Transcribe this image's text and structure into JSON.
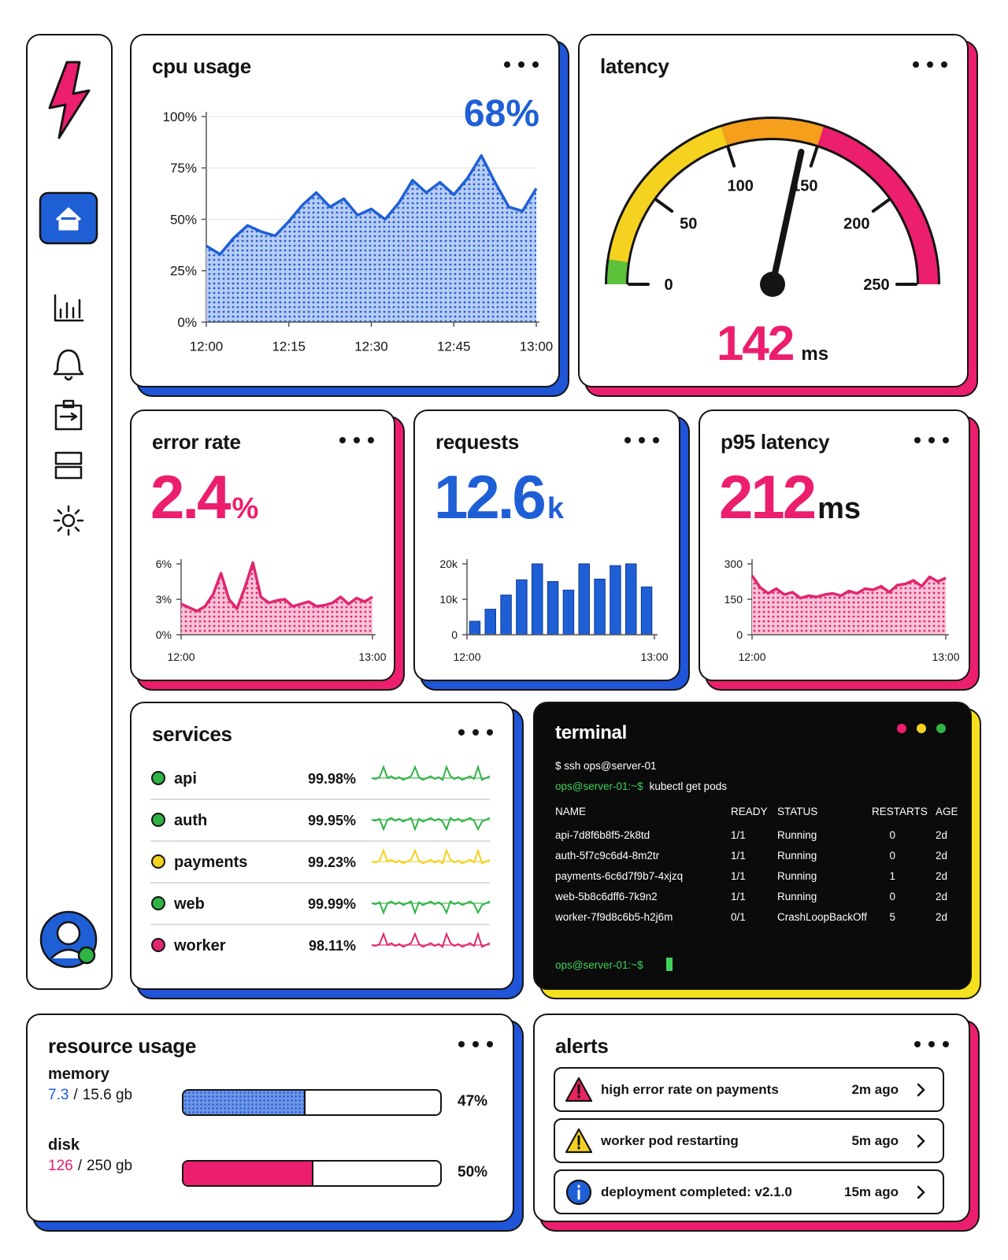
{
  "cpu_usage": {
    "title": "cpu usage",
    "value_label": "68%",
    "chart": {
      "type": "area",
      "color": "#1f5fd6",
      "fill": "#b9cdf3",
      "x": [
        0,
        2.5,
        5,
        7.5,
        10,
        12.5,
        15,
        17.5,
        20,
        22.5,
        25,
        27.5,
        30,
        32.5,
        35,
        37.5,
        40,
        42.5,
        45,
        47.5,
        50,
        52.5,
        55,
        57.5,
        60
      ],
      "values": [
        37,
        33,
        41,
        47,
        44,
        42,
        49,
        57,
        63,
        56,
        60,
        52,
        55,
        50,
        58,
        69,
        63,
        68,
        62,
        70,
        81,
        68,
        56,
        54,
        65
      ],
      "xlim": [
        0,
        60
      ],
      "xticks": [
        {
          "value": 0,
          "label": "12:00"
        },
        {
          "value": 15,
          "label": "12:15"
        },
        {
          "value": 30,
          "label": "12:30"
        },
        {
          "value": 45,
          "label": "12:45"
        },
        {
          "value": 60,
          "label": "13:00"
        }
      ],
      "ylim": [
        0,
        100
      ],
      "yticks": [
        {
          "value": 0,
          "label": "0%"
        },
        {
          "value": 25,
          "label": "25%"
        },
        {
          "value": 50,
          "label": "50%"
        },
        {
          "value": 75,
          "label": "75%"
        },
        {
          "value": 100,
          "label": "100%"
        }
      ],
      "grid": true
    }
  },
  "latency": {
    "title": "latency",
    "chart": {
      "type": "gauge",
      "value": 142,
      "unit": "ms",
      "color": "#ec1e6e",
      "ylim": [
        0,
        250
      ],
      "yticks": [
        0,
        50,
        100,
        150,
        200,
        250
      ],
      "bands": [
        {
          "from": 0,
          "to": 12,
          "color": "#5cc23a"
        },
        {
          "from": 12,
          "to": 100,
          "color": "#f4d21f"
        },
        {
          "from": 100,
          "to": 150,
          "color": "#f59f1c"
        },
        {
          "from": 150,
          "to": 250,
          "color": "#ec1e6e"
        }
      ]
    }
  },
  "error_rate": {
    "title": "error rate",
    "value": 2.4,
    "unit": "%",
    "color": "#ec1e6e",
    "unit_color": "#ec1e6e",
    "chart": {
      "type": "area",
      "color": "#e0266f",
      "fill": "#f7c3d8",
      "x": [
        0,
        2.5,
        5,
        7.5,
        10,
        12.5,
        15,
        17.5,
        20,
        22.5,
        25,
        27.5,
        30,
        32.5,
        35,
        37.5,
        40,
        42.5,
        45,
        47.5,
        50,
        52.5,
        55,
        57.5,
        60
      ],
      "values": [
        2.6,
        2.3,
        2.0,
        2.4,
        3.4,
        5.2,
        3.0,
        2.2,
        4.0,
        6.1,
        3.2,
        2.7,
        2.9,
        3.0,
        2.4,
        2.6,
        2.8,
        2.4,
        2.5,
        2.7,
        3.2,
        2.6,
        3.1,
        2.8,
        3.2
      ],
      "xlim": [
        0,
        60
      ],
      "xticks": [
        {
          "value": 0,
          "label": "12:00"
        },
        {
          "value": 60,
          "label": "13:00"
        }
      ],
      "ylim": [
        0,
        6
      ],
      "yticks": [
        {
          "value": 0,
          "label": "0%"
        },
        {
          "value": 3,
          "label": "3%"
        },
        {
          "value": 6,
          "label": "6%"
        }
      ]
    }
  },
  "requests": {
    "title": "requests",
    "value": 12.6,
    "unit": "k",
    "color": "#1f5fd6",
    "unit_color": "#1f5fd6",
    "chart": {
      "type": "bar",
      "color": "#1f5fd6",
      "x": [
        2.5,
        7.5,
        12.5,
        17.5,
        22.5,
        27.5,
        32.5,
        37.5,
        42.5,
        47.5,
        52.5,
        57.5
      ],
      "values": [
        3800,
        7200,
        11200,
        15500,
        20000,
        15000,
        12600,
        20000,
        15700,
        19500,
        20000,
        13500
      ],
      "xlim": [
        0,
        60
      ],
      "xticks": [
        {
          "value": 0,
          "label": "12:00"
        },
        {
          "value": 60,
          "label": "13:00"
        }
      ],
      "ylim": [
        0,
        20000
      ],
      "yticks": [
        0,
        {
          "value": 10000,
          "label": "10k"
        },
        {
          "value": 20000,
          "label": "20k"
        }
      ]
    }
  },
  "p95_latency": {
    "title": "p95 latency",
    "value": 212,
    "unit": "ms",
    "color": "#ec1e6e",
    "unit_color": "#141414",
    "chart": {
      "type": "area",
      "color": "#e0266f",
      "fill": "#f7c3d8",
      "x": [
        0,
        2.5,
        5,
        7.5,
        10,
        12.5,
        15,
        17.5,
        20,
        22.5,
        25,
        27.5,
        30,
        32.5,
        35,
        37.5,
        40,
        42.5,
        45,
        47.5,
        50,
        52.5,
        55,
        57.5,
        60
      ],
      "values": [
        250,
        200,
        175,
        195,
        170,
        180,
        155,
        165,
        160,
        170,
        175,
        165,
        185,
        175,
        195,
        190,
        205,
        180,
        210,
        215,
        230,
        205,
        245,
        225,
        240
      ],
      "xlim": [
        0,
        60
      ],
      "xticks": [
        {
          "value": 0,
          "label": "12:00"
        },
        {
          "value": 60,
          "label": "13:00"
        }
      ],
      "ylim": [
        0,
        300
      ],
      "yticks": [
        0,
        150,
        300
      ]
    }
  },
  "services": {
    "title": "services",
    "items": [
      {
        "name": "api",
        "uptime": "99.98%",
        "color": "#2fb344"
      },
      {
        "name": "auth",
        "uptime": "99.95%",
        "color": "#2fb344"
      },
      {
        "name": "payments",
        "uptime": "99.23%",
        "color": "#f4d21f"
      },
      {
        "name": "web",
        "uptime": "99.99%",
        "color": "#2fb344"
      },
      {
        "name": "worker",
        "uptime": "98.11%",
        "color": "#e0266f"
      }
    ]
  },
  "terminal": {
    "title": "terminal",
    "ssh": "$ ssh ops@server-01",
    "prompt": "ops@server-01:~$",
    "command": "kubectl get pods",
    "columns": [
      "NAME",
      "READY",
      "STATUS",
      "RESTARTS",
      "AGE"
    ],
    "rows": [
      [
        "api-7d8f6b8f5-2k8td",
        "1/1",
        "Running",
        "0",
        "2d"
      ],
      [
        "auth-5f7c9c6d4-8m2tr",
        "1/1",
        "Running",
        "0",
        "2d"
      ],
      [
        "payments-6c6d7f9b7-4xjzq",
        "1/1",
        "Running",
        "1",
        "2d"
      ],
      [
        "web-5b8c6dff6-7k9n2",
        "1/1",
        "Running",
        "0",
        "2d"
      ],
      [
        "worker-7f9d8c6b5-h2j6m",
        "0/1",
        "CrashLoopBackOff",
        "5",
        "2d"
      ]
    ]
  },
  "resource_usage": {
    "title": "resource usage",
    "items": [
      {
        "name": "memory",
        "used": "7.3",
        "separator": "/",
        "total": "15.6 gb",
        "percent": 47,
        "percent_label": "47%",
        "color": "#1f5fd6",
        "fill": "#6f95e6"
      },
      {
        "name": "disk",
        "used": "126",
        "separator": "/",
        "total": "250 gb",
        "percent": 50,
        "percent_label": "50%",
        "color": "#ec1e6e",
        "fill": "#ec1e6e"
      }
    ]
  },
  "alerts": {
    "title": "alerts",
    "items": [
      {
        "message": "high error rate on payments",
        "time": "2m ago",
        "icon": "triangle",
        "color": "#e8245f"
      },
      {
        "message": "worker pod restarting",
        "time": "5m ago",
        "icon": "triangle",
        "color": "#f5d21f"
      },
      {
        "message": "deployment completed: v2.1.0",
        "time": "15m ago",
        "icon": "circle",
        "color": "#1f5fd6"
      }
    ]
  }
}
